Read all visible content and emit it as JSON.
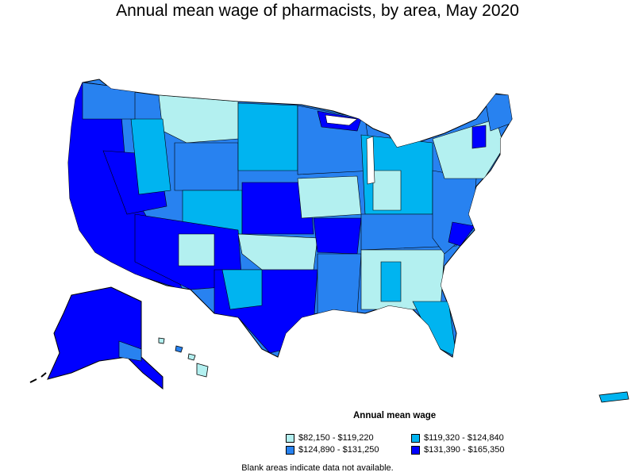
{
  "title": "Annual mean wage of pharmacists, by area, May 2020",
  "legend": {
    "title": "Annual mean wage",
    "items": [
      {
        "label": "$82,150 - $119,220",
        "color": "#b3f0f0"
      },
      {
        "label": "$119,320 - $124,840",
        "color": "#00b4f0"
      },
      {
        "label": "$124,890 - $131,250",
        "color": "#2882f0"
      },
      {
        "label": "$131,390 - $165,350",
        "color": "#0000ff"
      }
    ]
  },
  "note": "Blank areas indicate data not available.",
  "colors": {
    "tier1": "#b3f0f0",
    "tier2": "#00b4f0",
    "tier3": "#2882f0",
    "tier4": "#0000ff"
  }
}
